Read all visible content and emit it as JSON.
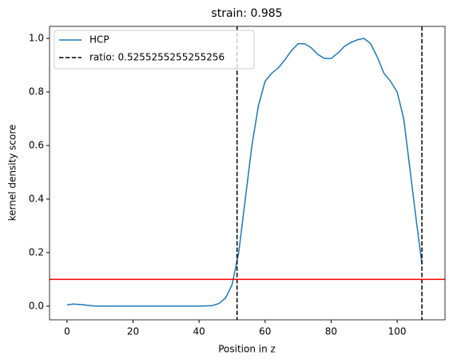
{
  "chart_data": {
    "type": "line",
    "title": "strain: 0.985",
    "xlabel": "Position in z",
    "ylabel": "kernel density score",
    "x": [
      0,
      2,
      5,
      8,
      10,
      20,
      30,
      40,
      44,
      46,
      48,
      50,
      52,
      54,
      56,
      58,
      60,
      62,
      64,
      66,
      68,
      70,
      72,
      74,
      76,
      78,
      80,
      82,
      84,
      86,
      88,
      90,
      92,
      94,
      96,
      98,
      100,
      102,
      104,
      106,
      107.5
    ],
    "series": [
      {
        "name": "HCP",
        "color": "#1f77b4",
        "values": [
          0.005,
          0.008,
          0.005,
          0.001,
          0,
          0,
          0,
          0,
          0.002,
          0.01,
          0.03,
          0.08,
          0.2,
          0.4,
          0.6,
          0.75,
          0.84,
          0.87,
          0.89,
          0.92,
          0.955,
          0.98,
          0.98,
          0.965,
          0.94,
          0.925,
          0.925,
          0.945,
          0.97,
          0.985,
          0.995,
          1.0,
          0.98,
          0.93,
          0.87,
          0.84,
          0.8,
          0.7,
          0.5,
          0.3,
          0.16
        ]
      }
    ],
    "vlines": {
      "name": "ratio: 0.5255255255255256",
      "color": "#000000",
      "values": [
        51.5,
        107.5
      ]
    },
    "hline": {
      "value": 0.1,
      "color": "#ff0000"
    },
    "xlim": [
      -5.3,
      114.5
    ],
    "ylim": [
      -0.051,
      1.045
    ],
    "xticks": [
      0,
      20,
      40,
      60,
      80,
      100
    ],
    "yticks": [
      {
        "value": 0,
        "label": "0.0"
      },
      {
        "value": 0.2,
        "label": "0.2"
      },
      {
        "value": 0.4,
        "label": "0.4"
      },
      {
        "value": 0.6,
        "label": "0.6"
      },
      {
        "value": 0.8,
        "label": "0.8"
      },
      {
        "value": 1.0,
        "label": "1.0"
      }
    ],
    "legend": "upper left"
  }
}
